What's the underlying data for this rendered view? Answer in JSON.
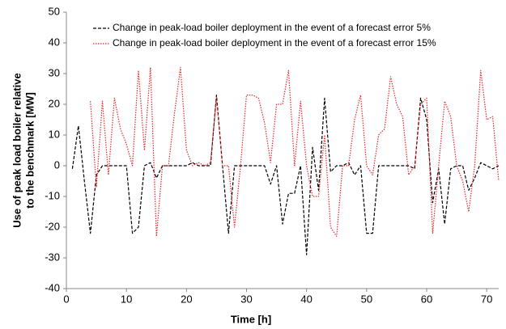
{
  "chart_data": {
    "type": "line",
    "xlabel": "Time [h]",
    "ylabel": [
      "Use of peak load boiler relative",
      "to the benchmark [MW]"
    ],
    "x": [
      1,
      2,
      3,
      4,
      5,
      6,
      7,
      8,
      9,
      10,
      11,
      12,
      13,
      14,
      15,
      16,
      17,
      18,
      19,
      20,
      21,
      22,
      23,
      24,
      25,
      26,
      27,
      28,
      29,
      30,
      31,
      32,
      33,
      34,
      35,
      36,
      37,
      38,
      39,
      40,
      41,
      42,
      43,
      44,
      45,
      46,
      47,
      48,
      49,
      50,
      51,
      52,
      53,
      54,
      55,
      56,
      57,
      58,
      59,
      60,
      61,
      62,
      63,
      64,
      65,
      66,
      67,
      68,
      69,
      70,
      71,
      72
    ],
    "series": [
      {
        "name": "Change in peak-load boiler deployment in the event of a forecast error 5%",
        "color": "#000000",
        "dash": "4,2",
        "values": [
          -1,
          13,
          -5,
          -22,
          -3,
          0,
          0,
          0,
          0,
          0,
          -22,
          -20,
          0,
          1,
          -4,
          0,
          0,
          0,
          0,
          0,
          1,
          0,
          0,
          0,
          23,
          0,
          -22,
          0,
          0,
          0,
          0,
          0,
          0,
          -6,
          0,
          -19,
          -9,
          -9,
          0,
          -29,
          6,
          -8,
          22,
          -2,
          0,
          0,
          1,
          -3,
          0,
          -22,
          -22,
          0,
          0,
          0,
          0,
          0,
          0,
          -1,
          22,
          15,
          -12,
          -1,
          -19,
          -1,
          0,
          0,
          -8,
          -4,
          1,
          0,
          -1,
          0
        ]
      },
      {
        "name": "Change in peak-load boiler deployment in the event of a forecast error 15%",
        "color": "#e8262a",
        "dash": "1.5,1.5",
        "values": [
          null,
          null,
          null,
          21,
          -7,
          21,
          -3,
          22,
          12,
          7,
          0,
          31,
          5,
          32,
          -23,
          0,
          0,
          17,
          32,
          5,
          0,
          1,
          0,
          1,
          22,
          0,
          0,
          -20,
          0,
          23,
          23,
          22,
          14,
          1,
          20,
          20,
          31,
          0,
          21,
          0,
          -10,
          -10,
          10,
          -20,
          -23,
          0,
          0,
          15,
          23,
          0,
          -3,
          10,
          12,
          29,
          20,
          16,
          -3,
          0,
          20,
          22,
          -22,
          0,
          21,
          16,
          0,
          -5,
          -15,
          0,
          31,
          15,
          16,
          -5
        ]
      }
    ],
    "xlim": [
      0,
      72
    ],
    "ylim": [
      -40,
      50
    ],
    "xticks": [
      0,
      10,
      20,
      30,
      40,
      50,
      60,
      70
    ],
    "yticks": [
      -40,
      -30,
      -20,
      -10,
      0,
      10,
      20,
      30,
      40,
      50
    ],
    "grid": false
  }
}
